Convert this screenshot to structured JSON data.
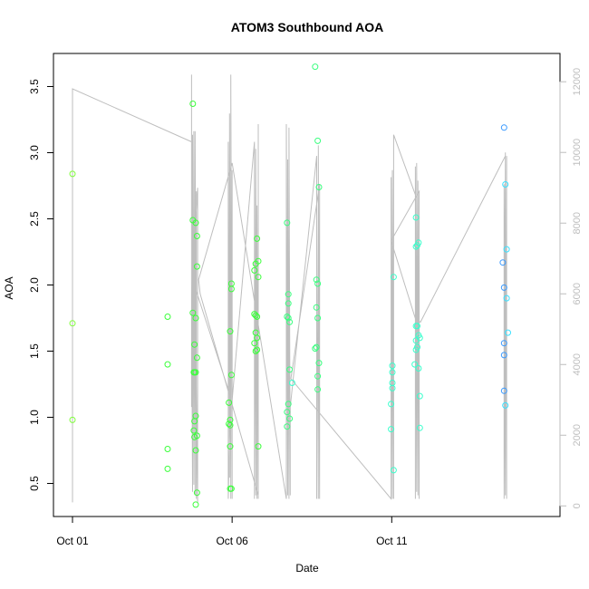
{
  "chart_data": {
    "type": "scatter",
    "title": "ATOM3 Southbound AOA",
    "xlabel": "Date",
    "ylabel": "AOA",
    "x_axis": {
      "type": "date",
      "range": [
        "2013-10-01",
        "2013-10-14"
      ],
      "ticks": [
        "2013-10-01",
        "2013-10-06",
        "2013-10-11"
      ],
      "tick_labels": [
        "Oct 01",
        "Oct 06",
        "Oct 11"
      ]
    },
    "y_axis": {
      "range": [
        0.25,
        3.75
      ],
      "ticks": [
        0.5,
        1.0,
        1.5,
        2.0,
        2.5,
        3.0,
        3.5
      ],
      "tick_labels": [
        "0.5",
        "1.0",
        "1.5",
        "2.0",
        "2.5",
        "3.0",
        "3.5"
      ]
    },
    "y2_axis": {
      "range": [
        -300,
        12800
      ],
      "ticks": [
        0,
        2000,
        4000,
        6000,
        8000,
        10000,
        12000
      ],
      "tick_labels": [
        "0",
        "2000",
        "4000",
        "6000",
        "8000",
        "10000",
        "12000"
      ],
      "color": "#bebebe"
    },
    "point_colors": [
      "#7fff3a",
      "#3aff3a",
      "#3aff7f",
      "#3affcc",
      "#3ae0ff",
      "#3a9aff"
    ],
    "points": [
      {
        "x": 0.0,
        "y": 2.84,
        "c": 0
      },
      {
        "x": 0.0,
        "y": 1.71,
        "c": 0
      },
      {
        "x": 0.0,
        "y": 0.98,
        "c": 0
      },
      {
        "x": 2.98,
        "y": 1.76,
        "c": 1
      },
      {
        "x": 2.98,
        "y": 1.4,
        "c": 1
      },
      {
        "x": 2.98,
        "y": 0.76,
        "c": 1
      },
      {
        "x": 2.98,
        "y": 0.61,
        "c": 1
      },
      {
        "x": 3.77,
        "y": 3.37,
        "c": 1
      },
      {
        "x": 3.77,
        "y": 2.49,
        "c": 1
      },
      {
        "x": 3.77,
        "y": 1.79,
        "c": 1
      },
      {
        "x": 3.82,
        "y": 1.55,
        "c": 1
      },
      {
        "x": 3.82,
        "y": 1.34,
        "c": 1
      },
      {
        "x": 3.82,
        "y": 0.97,
        "c": 1
      },
      {
        "x": 3.82,
        "y": 0.85,
        "c": 1
      },
      {
        "x": 3.86,
        "y": 2.47,
        "c": 1
      },
      {
        "x": 3.86,
        "y": 1.75,
        "c": 1
      },
      {
        "x": 3.86,
        "y": 1.34,
        "c": 1
      },
      {
        "x": 3.86,
        "y": 1.01,
        "c": 1
      },
      {
        "x": 3.86,
        "y": 0.75,
        "c": 1
      },
      {
        "x": 3.86,
        "y": 0.34,
        "c": 1
      },
      {
        "x": 3.9,
        "y": 2.37,
        "c": 1
      },
      {
        "x": 3.9,
        "y": 2.14,
        "c": 1
      },
      {
        "x": 3.9,
        "y": 1.45,
        "c": 1
      },
      {
        "x": 3.9,
        "y": 0.86,
        "c": 1
      },
      {
        "x": 3.9,
        "y": 0.43,
        "c": 1
      },
      {
        "x": 3.8,
        "y": 1.34,
        "c": 1
      },
      {
        "x": 3.8,
        "y": 0.9,
        "c": 1
      },
      {
        "x": 4.9,
        "y": 1.11,
        "c": 1
      },
      {
        "x": 4.9,
        "y": 0.95,
        "c": 1
      },
      {
        "x": 4.94,
        "y": 1.65,
        "c": 1
      },
      {
        "x": 4.94,
        "y": 0.98,
        "c": 1
      },
      {
        "x": 4.94,
        "y": 0.94,
        "c": 1
      },
      {
        "x": 4.94,
        "y": 0.78,
        "c": 1
      },
      {
        "x": 4.94,
        "y": 0.46,
        "c": 1
      },
      {
        "x": 4.98,
        "y": 2.01,
        "c": 1
      },
      {
        "x": 4.98,
        "y": 1.97,
        "c": 1
      },
      {
        "x": 4.98,
        "y": 1.32,
        "c": 1
      },
      {
        "x": 4.98,
        "y": 0.46,
        "c": 1
      },
      {
        "x": 5.7,
        "y": 2.11,
        "c": 1
      },
      {
        "x": 5.7,
        "y": 1.78,
        "c": 1
      },
      {
        "x": 5.7,
        "y": 1.56,
        "c": 1
      },
      {
        "x": 5.74,
        "y": 2.16,
        "c": 1
      },
      {
        "x": 5.74,
        "y": 1.77,
        "c": 1
      },
      {
        "x": 5.74,
        "y": 1.64,
        "c": 1
      },
      {
        "x": 5.74,
        "y": 1.5,
        "c": 1
      },
      {
        "x": 5.78,
        "y": 2.35,
        "c": 1
      },
      {
        "x": 5.78,
        "y": 1.76,
        "c": 1
      },
      {
        "x": 5.78,
        "y": 1.6,
        "c": 1
      },
      {
        "x": 5.78,
        "y": 1.51,
        "c": 1
      },
      {
        "x": 5.82,
        "y": 2.18,
        "c": 1
      },
      {
        "x": 5.82,
        "y": 2.06,
        "c": 1
      },
      {
        "x": 5.82,
        "y": 0.78,
        "c": 1
      },
      {
        "x": 6.72,
        "y": 2.47,
        "c": 2
      },
      {
        "x": 6.72,
        "y": 1.76,
        "c": 2
      },
      {
        "x": 6.72,
        "y": 1.04,
        "c": 2
      },
      {
        "x": 6.72,
        "y": 0.93,
        "c": 2
      },
      {
        "x": 6.76,
        "y": 1.93,
        "c": 2
      },
      {
        "x": 6.76,
        "y": 1.86,
        "c": 2
      },
      {
        "x": 6.76,
        "y": 1.75,
        "c": 2
      },
      {
        "x": 6.76,
        "y": 1.1,
        "c": 2
      },
      {
        "x": 6.8,
        "y": 1.72,
        "c": 2
      },
      {
        "x": 6.8,
        "y": 1.36,
        "c": 2
      },
      {
        "x": 6.8,
        "y": 0.99,
        "c": 2
      },
      {
        "x": 6.88,
        "y": 1.26,
        "c": 3
      },
      {
        "x": 7.6,
        "y": 3.65,
        "c": 2
      },
      {
        "x": 7.6,
        "y": 1.52,
        "c": 2
      },
      {
        "x": 7.64,
        "y": 2.04,
        "c": 2
      },
      {
        "x": 7.64,
        "y": 1.83,
        "c": 2
      },
      {
        "x": 7.64,
        "y": 1.53,
        "c": 2
      },
      {
        "x": 7.68,
        "y": 3.09,
        "c": 2
      },
      {
        "x": 7.68,
        "y": 2.01,
        "c": 2
      },
      {
        "x": 7.68,
        "y": 1.75,
        "c": 2
      },
      {
        "x": 7.68,
        "y": 1.31,
        "c": 2
      },
      {
        "x": 7.68,
        "y": 1.21,
        "c": 2
      },
      {
        "x": 7.72,
        "y": 2.74,
        "c": 2
      },
      {
        "x": 7.72,
        "y": 1.41,
        "c": 2
      },
      {
        "x": 9.98,
        "y": 1.1,
        "c": 3
      },
      {
        "x": 9.98,
        "y": 0.91,
        "c": 3
      },
      {
        "x": 10.02,
        "y": 1.39,
        "c": 3
      },
      {
        "x": 10.02,
        "y": 1.34,
        "c": 3
      },
      {
        "x": 10.02,
        "y": 1.26,
        "c": 3
      },
      {
        "x": 10.02,
        "y": 1.22,
        "c": 3
      },
      {
        "x": 10.06,
        "y": 2.06,
        "c": 3
      },
      {
        "x": 10.06,
        "y": 0.6,
        "c": 3
      },
      {
        "x": 10.72,
        "y": 1.4,
        "c": 3
      },
      {
        "x": 10.76,
        "y": 2.51,
        "c": 3
      },
      {
        "x": 10.76,
        "y": 2.29,
        "c": 3
      },
      {
        "x": 10.76,
        "y": 1.69,
        "c": 3
      },
      {
        "x": 10.76,
        "y": 1.58,
        "c": 3
      },
      {
        "x": 10.76,
        "y": 1.51,
        "c": 3
      },
      {
        "x": 10.8,
        "y": 2.3,
        "c": 3
      },
      {
        "x": 10.8,
        "y": 1.69,
        "c": 3
      },
      {
        "x": 10.8,
        "y": 1.53,
        "c": 3
      },
      {
        "x": 10.84,
        "y": 2.32,
        "c": 3
      },
      {
        "x": 10.84,
        "y": 1.62,
        "c": 3
      },
      {
        "x": 10.84,
        "y": 1.37,
        "c": 3
      },
      {
        "x": 10.88,
        "y": 1.6,
        "c": 3
      },
      {
        "x": 10.88,
        "y": 1.16,
        "c": 3
      },
      {
        "x": 10.88,
        "y": 0.92,
        "c": 3
      },
      {
        "x": 13.48,
        "y": 2.17,
        "c": 5
      },
      {
        "x": 13.52,
        "y": 3.19,
        "c": 5
      },
      {
        "x": 13.52,
        "y": 1.98,
        "c": 5
      },
      {
        "x": 13.52,
        "y": 1.56,
        "c": 5
      },
      {
        "x": 13.52,
        "y": 1.47,
        "c": 5
      },
      {
        "x": 13.52,
        "y": 1.2,
        "c": 5
      },
      {
        "x": 13.56,
        "y": 2.76,
        "c": 4
      },
      {
        "x": 13.56,
        "y": 1.09,
        "c": 4
      },
      {
        "x": 13.6,
        "y": 2.27,
        "c": 4
      },
      {
        "x": 13.6,
        "y": 1.9,
        "c": 4
      },
      {
        "x": 13.64,
        "y": 1.64,
        "c": 4
      }
    ],
    "line_series": {
      "color": "#bebebe",
      "points": [
        [
          0.0,
          100
        ],
        [
          0.0,
          11800
        ],
        [
          3.73,
          10300
        ],
        [
          3.73,
          2800
        ],
        [
          3.73,
          12200
        ],
        [
          3.73,
          6500
        ],
        [
          3.76,
          400
        ],
        [
          3.76,
          10500
        ],
        [
          3.8,
          600
        ],
        [
          3.8,
          10600
        ],
        [
          3.84,
          300
        ],
        [
          3.84,
          10600
        ],
        [
          3.88,
          200
        ],
        [
          3.88,
          8900
        ],
        [
          3.88,
          3400
        ],
        [
          3.92,
          100
        ],
        [
          3.92,
          9000
        ],
        [
          3.76,
          6400
        ],
        [
          4.95,
          3100
        ],
        [
          4.88,
          200
        ],
        [
          4.88,
          10300
        ],
        [
          4.92,
          800
        ],
        [
          4.92,
          11100
        ],
        [
          4.96,
          200
        ],
        [
          4.96,
          12200
        ],
        [
          5.0,
          200
        ],
        [
          5.0,
          9500
        ],
        [
          5.0,
          3000
        ],
        [
          5.7,
          10300
        ],
        [
          5.7,
          200
        ],
        [
          5.7,
          9500
        ],
        [
          5.74,
          300
        ],
        [
          5.74,
          10100
        ],
        [
          5.78,
          200
        ],
        [
          5.78,
          8500
        ],
        [
          5.82,
          200
        ],
        [
          5.82,
          10800
        ],
        [
          5.82,
          300
        ],
        [
          4.0,
          6000
        ],
        [
          3.95,
          6400
        ],
        [
          5.0,
          9700
        ],
        [
          6.7,
          200
        ],
        [
          6.7,
          10800
        ],
        [
          6.74,
          300
        ],
        [
          6.74,
          9800
        ],
        [
          6.78,
          200
        ],
        [
          6.78,
          10700
        ],
        [
          6.82,
          300
        ],
        [
          6.82,
          2800
        ],
        [
          7.65,
          9900
        ],
        [
          7.65,
          200
        ],
        [
          7.65,
          8300
        ],
        [
          7.7,
          200
        ],
        [
          7.7,
          10200
        ],
        [
          7.74,
          200
        ],
        [
          7.74,
          9100
        ],
        [
          6.84,
          3600
        ],
        [
          9.98,
          200
        ],
        [
          9.98,
          9300
        ],
        [
          10.02,
          200
        ],
        [
          10.02,
          9500
        ],
        [
          10.06,
          200
        ],
        [
          10.06,
          10500
        ],
        [
          10.74,
          8800
        ],
        [
          10.74,
          200
        ],
        [
          10.74,
          9600
        ],
        [
          10.78,
          400
        ],
        [
          10.78,
          9700
        ],
        [
          10.82,
          300
        ],
        [
          10.82,
          9200
        ],
        [
          10.86,
          200
        ],
        [
          10.86,
          8900
        ],
        [
          9.98,
          7500
        ],
        [
          10.74,
          5300
        ],
        [
          10.9,
          5200
        ],
        [
          13.56,
          9900
        ],
        [
          13.52,
          200
        ],
        [
          13.52,
          9100
        ],
        [
          13.56,
          300
        ],
        [
          13.56,
          10000
        ],
        [
          13.6,
          200
        ],
        [
          13.6,
          9900
        ]
      ]
    },
    "grid": false,
    "legend": "none"
  }
}
